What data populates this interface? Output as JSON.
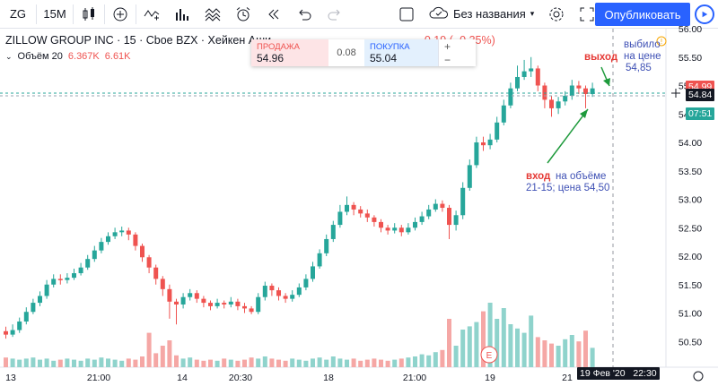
{
  "toolbar": {
    "symbol": "ZG",
    "interval": "15M",
    "layout_name": "Без названия",
    "publish_label": "Опубликовать"
  },
  "legend": {
    "name": "ZILLOW GROUP INC",
    "interval": "15",
    "exchange": "Cboe BZX",
    "chart_style": "Хейкен Аши",
    "change": "−0.19 (−0.35%)",
    "volume_label": "Объём 20",
    "volume_value": "6.367K",
    "volume_ma": "6.61K"
  },
  "trade_panel": {
    "sell_label": "ПРОДАЖА",
    "sell_price": "54.96",
    "spread": "0.08",
    "buy_label": "ПОКУПКА",
    "buy_price": "55.04",
    "plus": "+",
    "minus": "−"
  },
  "annotations": {
    "exit": "выход",
    "knocked_out_1": "выбило",
    "knocked_out_2": "на цене",
    "knocked_out_3": "54,85",
    "entry": "вход",
    "entry_volume_1": "на объёме",
    "entry_volume_2": "21-15; цена 54,50",
    "earnings_badge": "E"
  },
  "price_tags": {
    "ask": "54.99",
    "last": "54.84",
    "countdown": "07:51"
  },
  "crosshair_time": "19 Фев '20   22:30",
  "colors": {
    "up": "#26a69a",
    "down": "#ef5350",
    "vol_up": "#8fd3cc",
    "vol_down": "#f5a7a5",
    "accent": "#2962ff"
  },
  "chart_data": {
    "type": "candlestick",
    "y_ticks": [
      "56.00",
      "55.50",
      "55.00",
      "54.50",
      "54.00",
      "53.50",
      "53.00",
      "52.50",
      "52.00",
      "51.50",
      "51.00",
      "50.50"
    ],
    "x_ticks": [
      "13",
      "21:00",
      "14",
      "20:30",
      "18",
      "21:00",
      "19",
      "21"
    ],
    "ylim": [
      50.3,
      56.05
    ],
    "candles": [
      [
        50.68,
        50.62,
        50.76,
        50.55
      ],
      [
        50.62,
        50.7,
        50.8,
        50.58
      ],
      [
        50.7,
        50.85,
        50.92,
        50.65
      ],
      [
        50.85,
        51.02,
        51.1,
        50.8
      ],
      [
        51.02,
        51.18,
        51.25,
        50.98
      ],
      [
        51.18,
        51.3,
        51.38,
        51.12
      ],
      [
        51.3,
        51.5,
        51.58,
        51.25
      ],
      [
        51.5,
        51.6,
        51.68,
        51.45
      ],
      [
        51.6,
        51.58,
        51.68,
        51.5
      ],
      [
        51.58,
        51.62,
        51.7,
        51.52
      ],
      [
        51.62,
        51.7,
        51.78,
        51.58
      ],
      [
        51.7,
        51.8,
        51.88,
        51.66
      ],
      [
        51.8,
        51.95,
        52.02,
        51.76
      ],
      [
        51.95,
        52.1,
        52.18,
        51.9
      ],
      [
        52.1,
        52.25,
        52.32,
        52.05
      ],
      [
        52.25,
        52.35,
        52.42,
        52.2
      ],
      [
        52.35,
        52.42,
        52.5,
        52.3
      ],
      [
        52.42,
        52.45,
        52.52,
        52.35
      ],
      [
        52.45,
        52.38,
        52.5,
        52.28
      ],
      [
        52.38,
        52.18,
        52.42,
        52.1
      ],
      [
        52.18,
        51.98,
        52.22,
        51.9
      ],
      [
        51.98,
        51.8,
        52.02,
        51.7
      ],
      [
        51.8,
        51.6,
        51.85,
        51.5
      ],
      [
        51.6,
        51.42,
        51.65,
        51.3
      ],
      [
        51.42,
        51.2,
        51.5,
        50.9
      ],
      [
        51.2,
        51.15,
        51.25,
        50.8
      ],
      [
        51.15,
        51.28,
        51.35,
        51.08
      ],
      [
        51.28,
        51.35,
        51.42,
        51.22
      ],
      [
        51.35,
        51.25,
        51.4,
        51.18
      ],
      [
        51.25,
        51.18,
        51.3,
        51.1
      ],
      [
        51.18,
        51.12,
        51.22,
        51.05
      ],
      [
        51.12,
        51.18,
        51.25,
        51.08
      ],
      [
        51.18,
        51.15,
        51.22,
        51.08
      ],
      [
        51.15,
        51.2,
        51.28,
        51.1
      ],
      [
        51.2,
        51.12,
        51.25,
        51.05
      ],
      [
        51.12,
        51.08,
        51.18,
        51.0
      ],
      [
        51.08,
        51.02,
        51.12,
        50.98
      ],
      [
        51.02,
        51.28,
        51.35,
        50.98
      ],
      [
        51.28,
        51.48,
        51.55,
        51.22
      ],
      [
        51.48,
        51.4,
        51.52,
        51.3
      ],
      [
        51.4,
        51.3,
        51.45,
        51.22
      ],
      [
        51.3,
        51.25,
        51.35,
        51.18
      ],
      [
        51.25,
        51.32,
        51.4,
        51.2
      ],
      [
        51.32,
        51.45,
        51.52,
        51.28
      ],
      [
        51.45,
        51.6,
        51.68,
        51.4
      ],
      [
        51.6,
        51.82,
        51.9,
        51.55
      ],
      [
        51.82,
        52.05,
        52.12,
        51.78
      ],
      [
        52.05,
        52.3,
        52.38,
        52.0
      ],
      [
        52.3,
        52.55,
        52.62,
        52.25
      ],
      [
        52.55,
        52.78,
        52.9,
        52.5
      ],
      [
        52.78,
        52.9,
        53.05,
        52.72
      ],
      [
        52.9,
        52.82,
        52.95,
        52.72
      ],
      [
        52.82,
        52.75,
        52.88,
        52.68
      ],
      [
        52.75,
        52.68,
        52.82,
        52.6
      ],
      [
        52.68,
        52.6,
        52.72,
        52.52
      ],
      [
        52.6,
        52.5,
        52.65,
        52.42
      ],
      [
        52.5,
        52.45,
        52.55,
        52.38
      ],
      [
        52.45,
        52.5,
        52.58,
        52.4
      ],
      [
        52.5,
        52.42,
        52.55,
        52.35
      ],
      [
        52.42,
        52.5,
        52.58,
        52.38
      ],
      [
        52.5,
        52.6,
        52.68,
        52.45
      ],
      [
        52.6,
        52.7,
        52.78,
        52.55
      ],
      [
        52.7,
        52.82,
        52.9,
        52.65
      ],
      [
        52.82,
        52.92,
        53.0,
        52.78
      ],
      [
        52.92,
        52.85,
        52.98,
        52.78
      ],
      [
        52.85,
        52.55,
        52.9,
        52.3
      ],
      [
        52.55,
        52.72,
        52.8,
        52.45
      ],
      [
        52.72,
        53.2,
        53.3,
        52.65
      ],
      [
        53.2,
        53.6,
        53.7,
        53.15
      ],
      [
        53.6,
        54.0,
        54.1,
        53.55
      ],
      [
        54.0,
        53.95,
        54.1,
        53.85
      ],
      [
        53.95,
        54.05,
        54.15,
        53.88
      ],
      [
        54.05,
        54.35,
        54.45,
        54.0
      ],
      [
        54.35,
        54.65,
        54.75,
        54.3
      ],
      [
        54.65,
        54.95,
        55.05,
        54.6
      ],
      [
        54.95,
        55.15,
        55.35,
        54.9
      ],
      [
        55.15,
        55.25,
        55.45,
        55.1
      ],
      [
        55.25,
        55.3,
        55.5,
        55.15
      ],
      [
        55.3,
        55.0,
        55.35,
        54.9
      ],
      [
        55.0,
        54.75,
        55.05,
        54.6
      ],
      [
        54.75,
        54.6,
        54.82,
        54.45
      ],
      [
        54.6,
        54.72,
        54.8,
        54.5
      ],
      [
        54.72,
        54.82,
        54.9,
        54.65
      ],
      [
        54.82,
        55.0,
        55.1,
        54.75
      ],
      [
        55.0,
        54.95,
        55.08,
        54.85
      ],
      [
        54.95,
        54.85,
        55.0,
        54.6
      ],
      [
        54.85,
        54.95,
        55.05,
        54.8
      ]
    ],
    "volumes": [
      0.9,
      0.8,
      0.7,
      0.8,
      0.9,
      0.7,
      0.8,
      0.6,
      0.7,
      0.8,
      0.7,
      0.6,
      0.8,
      0.7,
      0.9,
      0.8,
      0.7,
      0.6,
      0.8,
      0.7,
      1.0,
      3.2,
      1.3,
      2.0,
      2.5,
      1.1,
      0.8,
      0.9,
      0.7,
      0.6,
      0.7,
      0.6,
      0.8,
      0.7,
      0.6,
      0.7,
      0.9,
      0.8,
      1.0,
      0.8,
      0.7,
      0.6,
      0.8,
      0.7,
      0.6,
      0.8,
      0.9,
      0.7,
      1.0,
      0.8,
      0.7,
      0.8,
      0.6,
      0.7,
      0.8,
      0.7,
      0.6,
      0.7,
      0.8,
      0.9,
      1.0,
      1.2,
      1.1,
      1.4,
      1.6,
      4.5,
      2.0,
      3.5,
      3.8,
      4.2,
      5.2,
      6.0,
      4.5,
      5.5,
      4.0,
      3.6,
      3.2,
      4.8,
      2.8,
      2.5,
      2.2,
      2.0,
      2.6,
      3.0,
      2.4,
      3.4,
      1.8
    ]
  }
}
